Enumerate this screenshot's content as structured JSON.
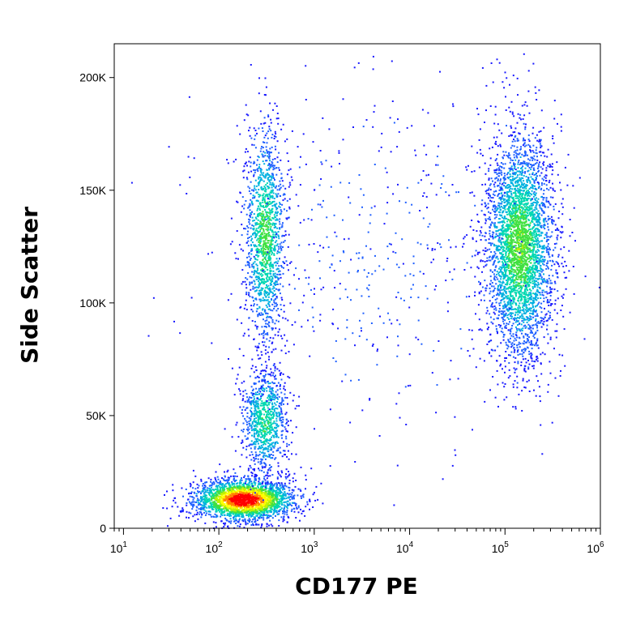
{
  "chart_data": {
    "type": "scatter",
    "title": "",
    "xlabel": "CD177 PE",
    "ylabel": "Side Scatter",
    "x_scale": "log",
    "xlim": [
      8,
      1000000
    ],
    "ylim": [
      0,
      215000
    ],
    "grid": false,
    "legend": "none",
    "x_ticks": [
      {
        "value": 10,
        "base": "10",
        "exp": "1"
      },
      {
        "value": 100,
        "base": "10",
        "exp": "2"
      },
      {
        "value": 1000,
        "base": "10",
        "exp": "3"
      },
      {
        "value": 10000,
        "base": "10",
        "exp": "4"
      },
      {
        "value": 100000,
        "base": "10",
        "exp": "5"
      },
      {
        "value": 1000000,
        "base": "10",
        "exp": "6"
      }
    ],
    "y_ticks": [
      {
        "value": 0,
        "label": "0"
      },
      {
        "value": 50000,
        "label": "50K"
      },
      {
        "value": 100000,
        "label": "100K"
      },
      {
        "value": 150000,
        "label": "150K"
      },
      {
        "value": 200000,
        "label": "200K"
      }
    ],
    "density_colors": [
      "#1a1aff",
      "#2060ff",
      "#00b0e0",
      "#00d8b0",
      "#40e040",
      "#c0f000",
      "#ffff00",
      "#ff8000",
      "#ff0000"
    ],
    "populations": [
      {
        "x_center": 180,
        "y_center": 13000,
        "x_spread_decades": 0.26,
        "y_spread": 4500,
        "count": 2600,
        "peak_density": 1.0
      },
      {
        "x_center": 300,
        "y_center": 48000,
        "x_spread_decades": 0.12,
        "y_spread": 12000,
        "count": 900,
        "peak_density": 0.4
      },
      {
        "x_center": 300,
        "y_center": 130000,
        "x_spread_decades": 0.11,
        "y_spread": 25000,
        "count": 1400,
        "peak_density": 0.45
      },
      {
        "x_center": 140000,
        "y_center": 125000,
        "x_spread_decades": 0.18,
        "y_spread": 25000,
        "count": 3600,
        "peak_density": 0.5
      },
      {
        "x_center": 5000,
        "y_center": 120000,
        "x_spread_decades": 0.9,
        "y_spread": 40000,
        "count": 500,
        "peak_density": 0.1
      }
    ]
  }
}
